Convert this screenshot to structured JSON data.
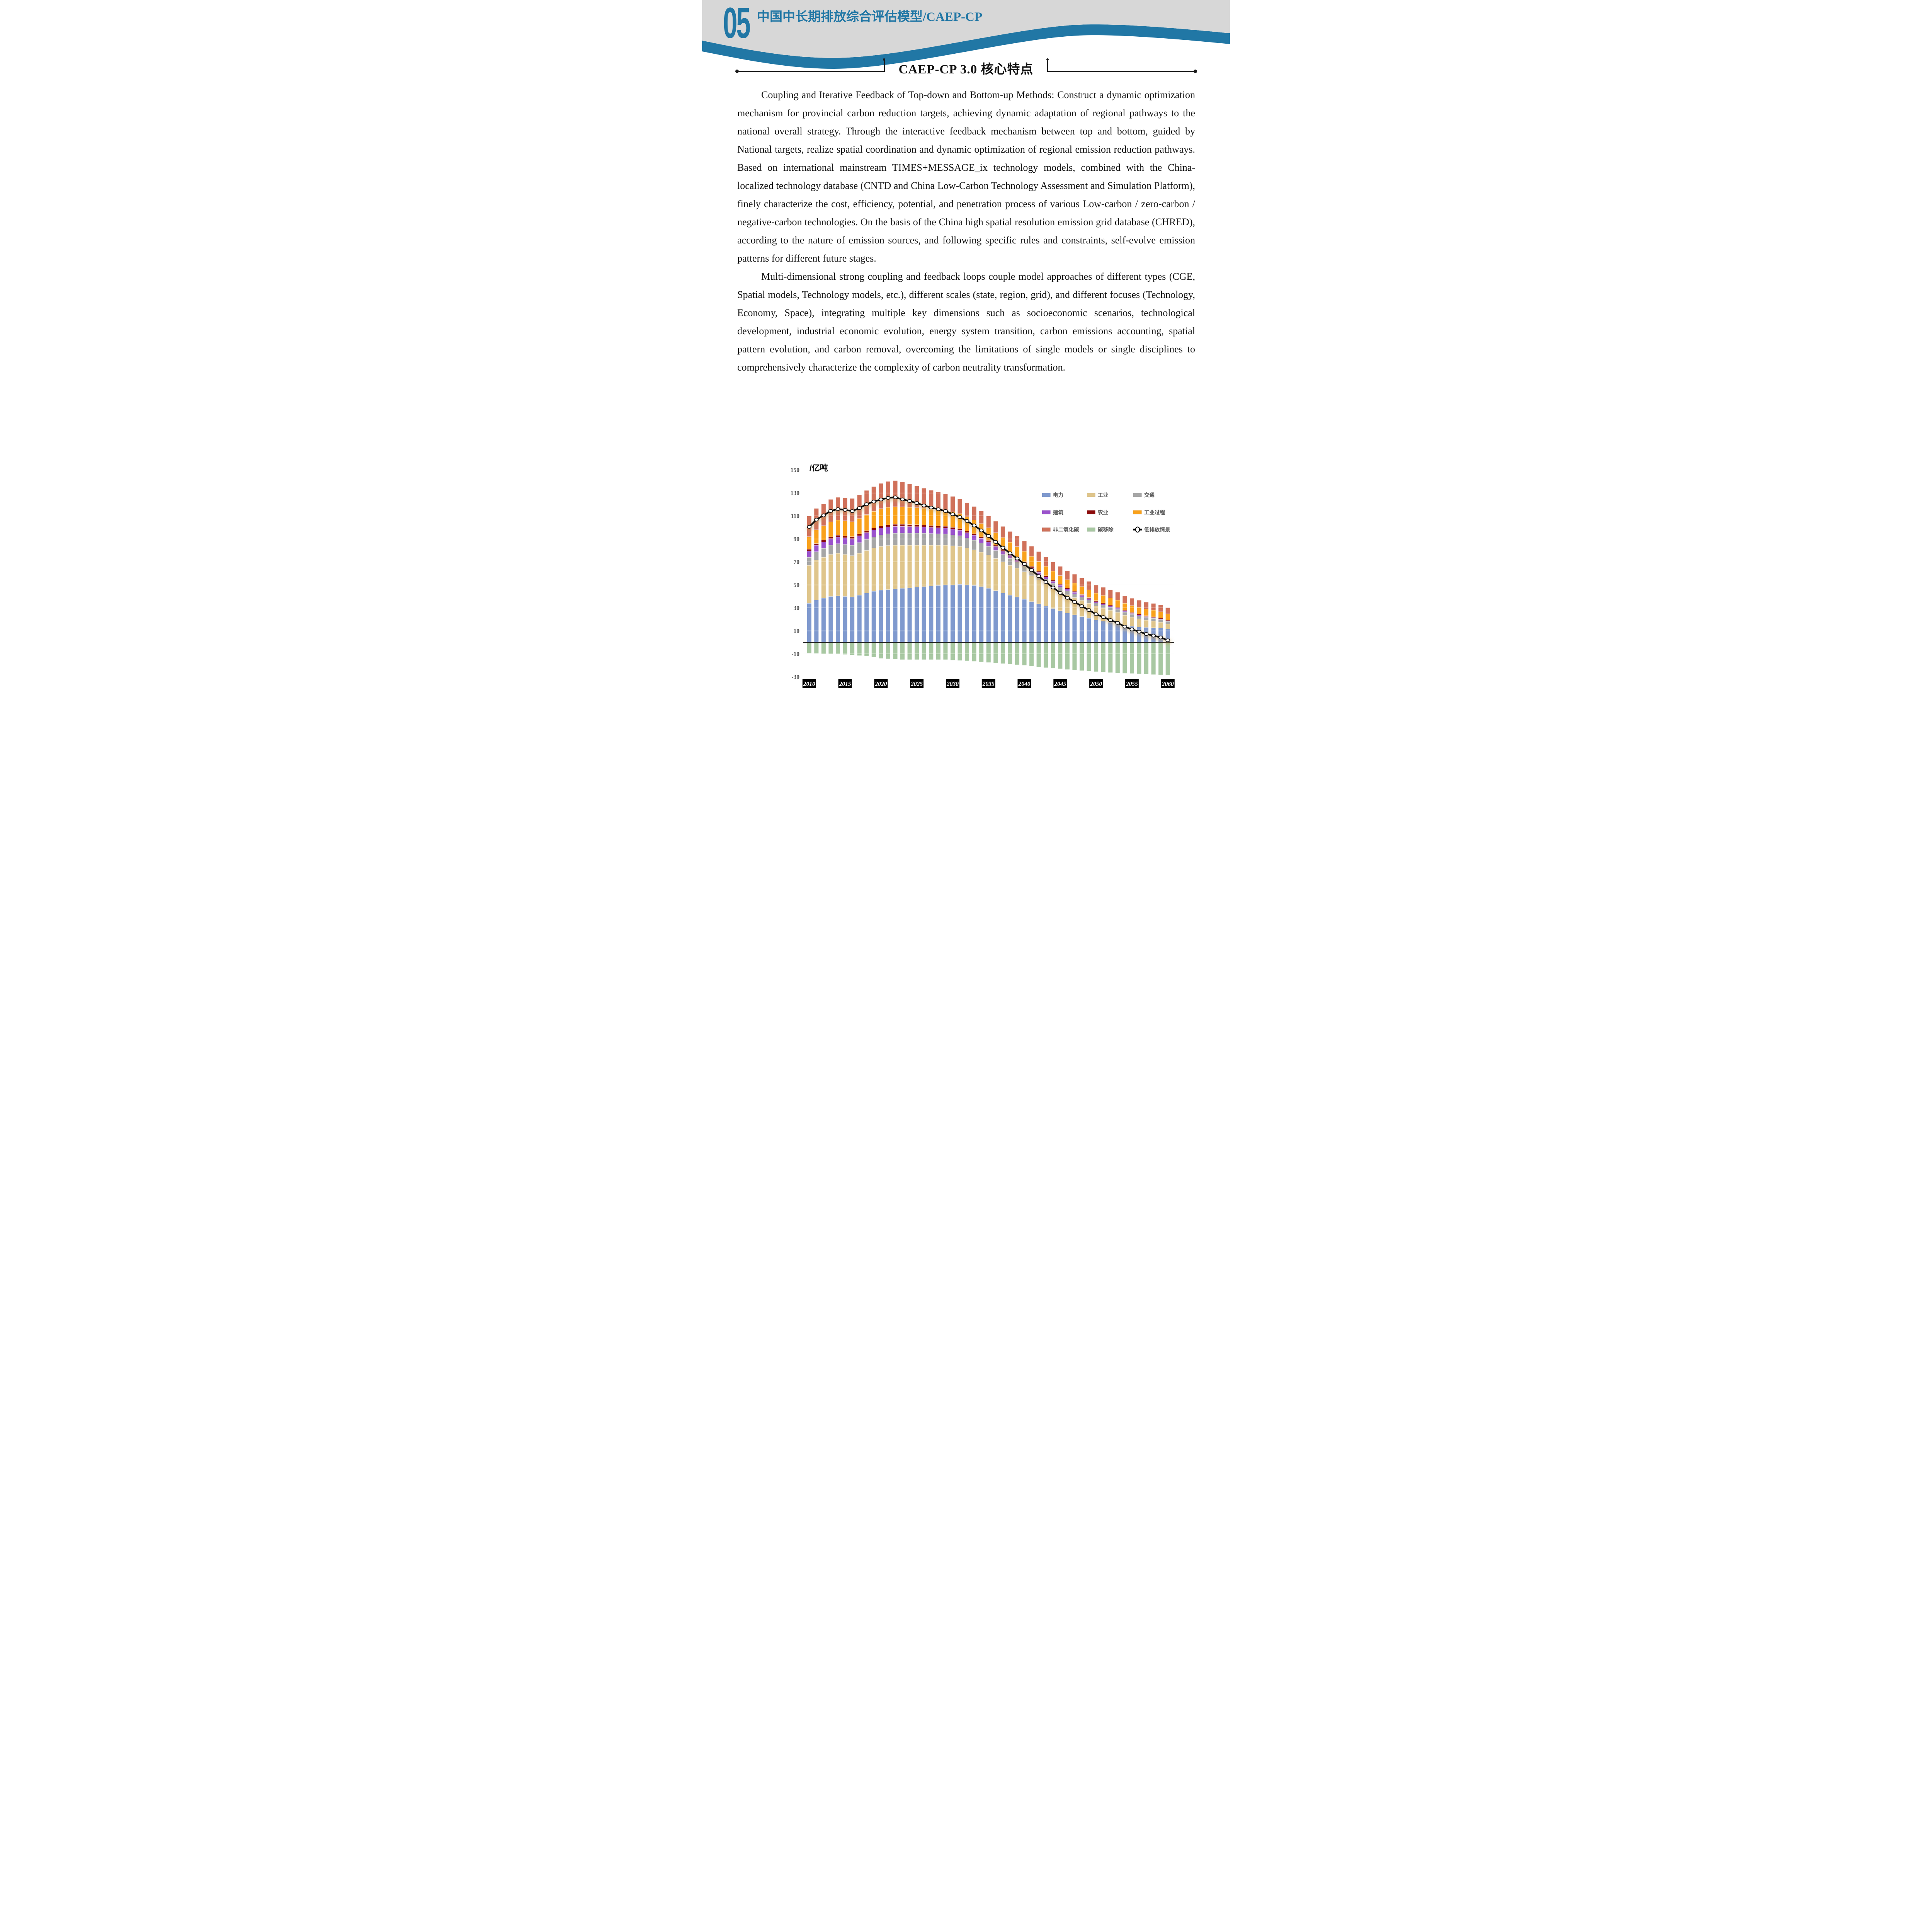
{
  "header": {
    "page_number": "05",
    "title_cn": "中国中长期排放综合评估模型",
    "title_en": "/CAEP-CP",
    "accent_color": "#2177A5",
    "band_gray": "#D7D7D7"
  },
  "section": {
    "title": "CAEP-CP 3.0 核心特点"
  },
  "paragraphs": [
    "Coupling and Iterative Feedback of Top-down and Bottom-up Methods: Construct a dynamic optimization mechanism for provincial carbon reduction targets, achieving dynamic adaptation of regional pathways to the national overall strategy. Through the interactive feedback mechanism between top and bottom, guided by National targets, realize spatial coordination and dynamic optimization of regional emission reduction pathways. Based on international mainstream TIMES+MESSAGE_ix technology models, combined with the China-localized technology database (CNTD and China Low-Carbon Technology Assessment and Simulation Platform), finely characterize the cost, efficiency, potential, and penetration process of various Low-carbon / zero-carbon / negative-carbon technologies. On the basis of the China high spatial resolution emission grid database (CHRED), according to the nature of emission sources, and following specific rules and constraints, self-evolve emission patterns for different future stages.",
    "Multi-dimensional strong coupling and feedback loops couple model approaches of different types (CGE, Spatial models, Technology models, etc.), different scales (state, region, grid), and different focuses (Technology, Economy, Space), integrating multiple key dimensions such as socioeconomic scenarios, technological development, industrial economic evolution, energy system transition, carbon emissions accounting, spatial pattern evolution, and carbon removal, overcoming the limitations of single models or single disciplines to comprehensively characterize the complexity of carbon neutrality transformation."
  ],
  "chart_data": {
    "type": "bar",
    "stacked": true,
    "unit_label": "/亿吨",
    "x_start_year": 2010,
    "x_end_year": 2060,
    "x_tick_labels": [
      "2010",
      "2015",
      "2020",
      "2025",
      "2030",
      "2035",
      "2040",
      "2045",
      "2050",
      "2055",
      "2060"
    ],
    "y_ticks": [
      150,
      130,
      110,
      90,
      70,
      50,
      30,
      10,
      -10,
      -30
    ],
    "ylim": [
      -30,
      150
    ],
    "grid": "light horizontal gridlines every 20, shown white where they cross bars",
    "legend_position": "top-right, 3 columns x 3 rows",
    "series": [
      {
        "key": "power",
        "name": "电力",
        "color": "#7F99CE",
        "values": [
          34,
          37,
          38.5,
          40,
          40.5,
          40,
          39.5,
          41,
          43,
          44.5,
          45.5,
          46,
          46.5,
          47,
          47.5,
          48,
          48.5,
          49,
          49.5,
          50,
          50,
          50.5,
          50,
          49.5,
          48.5,
          47,
          45,
          43,
          41,
          39.5,
          37.5,
          35.5,
          33.5,
          31.5,
          29.5,
          27.5,
          25.5,
          24,
          22.5,
          21,
          19.5,
          18.5,
          17.5,
          16.5,
          15,
          14,
          13.5,
          13,
          12.7,
          12.4,
          11.8
        ]
      },
      {
        "key": "industry",
        "name": "工业",
        "color": "#DFC58B",
        "values": [
          33,
          34.5,
          35.5,
          36.5,
          37,
          36.5,
          36,
          36.5,
          37,
          37.5,
          38,
          38.3,
          38,
          37.5,
          37,
          36.5,
          36,
          35.5,
          35,
          34.5,
          34,
          33,
          32,
          31,
          30,
          29,
          28,
          27,
          26,
          25,
          24,
          22.5,
          21,
          19.5,
          18.2,
          17,
          16,
          15,
          14,
          13,
          12,
          11.2,
          10.4,
          9.6,
          8.6,
          7.8,
          7,
          6.3,
          5.7,
          5.1,
          4.2
        ]
      },
      {
        "key": "transport",
        "name": "交通",
        "color": "#A6A6A6",
        "values": [
          7,
          7.4,
          7.8,
          8.1,
          8.4,
          8.7,
          9,
          9.3,
          9.6,
          9.8,
          10,
          10.2,
          10.4,
          10.5,
          10.5,
          10.5,
          10.4,
          10.2,
          10,
          9.8,
          9.5,
          9.2,
          8.8,
          8.4,
          8,
          7.5,
          7,
          6.5,
          6,
          5.5,
          5,
          4.7,
          4.4,
          4.1,
          3.8,
          3.6,
          3.4,
          3.2,
          3.1,
          3,
          2.9,
          2.8,
          2.8,
          2.7,
          2.7,
          2.6,
          2.6,
          2.5,
          2.5,
          2.4,
          2.3
        ]
      },
      {
        "key": "buildings",
        "name": "建筑",
        "color": "#9A52CC",
        "values": [
          5.5,
          5.6,
          5.6,
          5.7,
          5.7,
          5.8,
          5.8,
          5.9,
          5.9,
          6,
          6,
          6,
          6,
          5.9,
          5.8,
          5.7,
          5.5,
          5.3,
          5.2,
          5.1,
          5,
          4.8,
          4.6,
          4.3,
          4,
          3.8,
          3.5,
          3.2,
          3,
          2.7,
          2.5,
          2.2,
          2,
          1.8,
          1.6,
          1.5,
          1.4,
          1.3,
          1.2,
          1.1,
          1,
          1,
          0.9,
          0.9,
          0.8,
          0.8,
          0.8,
          0.7,
          0.7,
          0.6,
          0.5
        ]
      },
      {
        "key": "agriculture",
        "name": "农业",
        "color": "#8C0B0B",
        "values": [
          1.5,
          1.5,
          1.6,
          1.6,
          1.6,
          1.6,
          1.7,
          1.7,
          1.7,
          1.7,
          1.8,
          1.8,
          1.8,
          1.8,
          1.7,
          1.7,
          1.7,
          1.6,
          1.6,
          1.6,
          1.5,
          1.5,
          1.5,
          1.4,
          1.4,
          1.4,
          1.3,
          1.3,
          1.3,
          1.2,
          1.2,
          1.2,
          1.1,
          1.1,
          1.1,
          1,
          1,
          1,
          0.9,
          0.9,
          0.9,
          0.9,
          0.8,
          0.8,
          0.8,
          0.8,
          0.7,
          0.7,
          0.7,
          0.6,
          0.6
        ]
      },
      {
        "key": "industrial-process",
        "name": "工业过程",
        "color": "#F9A11B",
        "values": [
          11,
          12,
          12.5,
          13,
          13.2,
          13.2,
          13,
          13.4,
          14,
          14.5,
          15,
          15.2,
          15.3,
          15.2,
          15,
          14.8,
          14.5,
          14.2,
          14,
          13.8,
          13.5,
          13,
          12.5,
          12,
          11.5,
          11,
          10.6,
          10.2,
          9.8,
          9.4,
          9,
          8.7,
          8.4,
          8.1,
          7.8,
          7.5,
          7.3,
          7.1,
          6.9,
          6.7,
          6.5,
          6.4,
          6.3,
          6.2,
          6.1,
          6,
          5.9,
          5.8,
          5.7,
          5.6,
          5.4
        ]
      },
      {
        "key": "non-co2",
        "name": "非二氧化碳",
        "color": "#D0715A",
        "values": [
          18,
          18.5,
          19,
          19.5,
          19.8,
          20,
          20.2,
          20.5,
          21,
          21.5,
          22,
          22.5,
          22.8,
          21.5,
          20.5,
          19,
          17.5,
          16.5,
          15.5,
          14.5,
          13.5,
          12.8,
          12.2,
          11.6,
          11,
          10.4,
          10,
          9.7,
          9.4,
          9.2,
          9,
          8.8,
          8.6,
          8.4,
          8.2,
          8,
          7.8,
          7.7,
          7.5,
          7.4,
          7.2,
          7.1,
          7,
          6.9,
          6.6,
          6.4,
          6.2,
          6,
          5.9,
          5.8,
          5.5
        ]
      },
      {
        "key": "carbon-removal",
        "name": "碳移除",
        "color": "#A8C8A2",
        "values": [
          -9.5,
          -9.7,
          -10,
          -10,
          -10.3,
          -10.5,
          -11,
          -11.5,
          -12,
          -13,
          -14,
          -14.3,
          -14.6,
          -15,
          -15,
          -15,
          -15,
          -15,
          -15,
          -15,
          -15.5,
          -15.8,
          -16,
          -16.5,
          -17,
          -17.5,
          -18,
          -18.5,
          -19,
          -19.5,
          -20,
          -20.7,
          -21.4,
          -22,
          -22.5,
          -23,
          -23.6,
          -24.1,
          -24.6,
          -25,
          -25.5,
          -25.9,
          -26.3,
          -26.6,
          -26.9,
          -27.1,
          -27.4,
          -27.7,
          -28,
          -28.2,
          -28.5
        ]
      }
    ],
    "line_series": {
      "key": "low-emission-scenario",
      "name": "低排放情景",
      "color": "#0d0d0d",
      "marker": "white ellipse with black outline",
      "values": [
        100.5,
        106.8,
        110.5,
        114.4,
        115.9,
        115.3,
        114.2,
        116.8,
        120.2,
        122.5,
        124.3,
        125.7,
        126.2,
        124.4,
        123,
        121.2,
        119.1,
        117.3,
        115.8,
        114.3,
        111.5,
        109,
        105.6,
        101.7,
        97.4,
        92.6,
        87.4,
        82.4,
        77.5,
        73,
        68.2,
        62.9,
        57.6,
        52.5,
        47.7,
        43.1,
        38.8,
        35.2,
        31.5,
        28.1,
        24.5,
        22,
        19.4,
        17,
        13.7,
        11.3,
        9.3,
        7.3,
        5.9,
        4.3,
        1.8
      ]
    }
  }
}
